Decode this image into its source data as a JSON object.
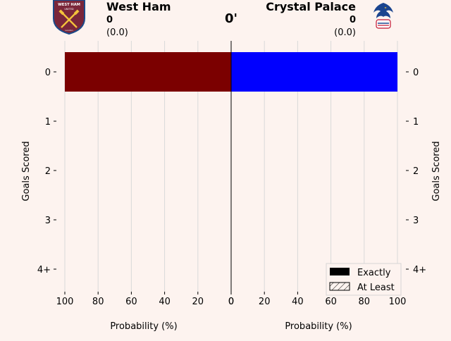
{
  "header": {
    "minute": "0'",
    "home": {
      "name": "West Ham",
      "score": "0",
      "xg": "(0.0)",
      "badge_icon": "west-ham-crest-icon",
      "badge_text_top": "WEST HAM",
      "badge_text_mid": "UNITED",
      "badge_text_bottom": "London"
    },
    "away": {
      "name": "Crystal Palace",
      "score": "0",
      "xg": "(0.0)",
      "badge_icon": "crystal-palace-eagle-icon"
    }
  },
  "chart_data": {
    "type": "bar",
    "orientation": "horizontal-mirrored",
    "categories": [
      "0",
      "1",
      "2",
      "3",
      "4+"
    ],
    "series": [
      {
        "name": "West Ham",
        "side": "left",
        "kind": "exactly",
        "color": "#7b0000",
        "values": [
          100,
          0,
          0,
          0,
          0
        ]
      },
      {
        "name": "Crystal Palace",
        "side": "right",
        "kind": "exactly",
        "color": "#0000ff",
        "values": [
          100,
          0,
          0,
          0,
          0
        ]
      }
    ],
    "at_least": {
      "West Ham": [
        100,
        0,
        0,
        0,
        0
      ],
      "Crystal Palace": [
        100,
        0,
        0,
        0,
        0
      ]
    },
    "xlabel_left": "Probability (%)",
    "xlabel_right": "Probability (%)",
    "ylabel_left": "Goals Scored",
    "ylabel_right": "Goals Scored",
    "xlim": [
      0,
      100
    ],
    "xticks": [
      0,
      20,
      40,
      60,
      80,
      100
    ],
    "grid": "vertical",
    "legend": {
      "placement": "bottom-right",
      "entries": [
        {
          "label": "Exactly",
          "style": "solid"
        },
        {
          "label": "At Least",
          "style": "hatched"
        }
      ]
    }
  }
}
